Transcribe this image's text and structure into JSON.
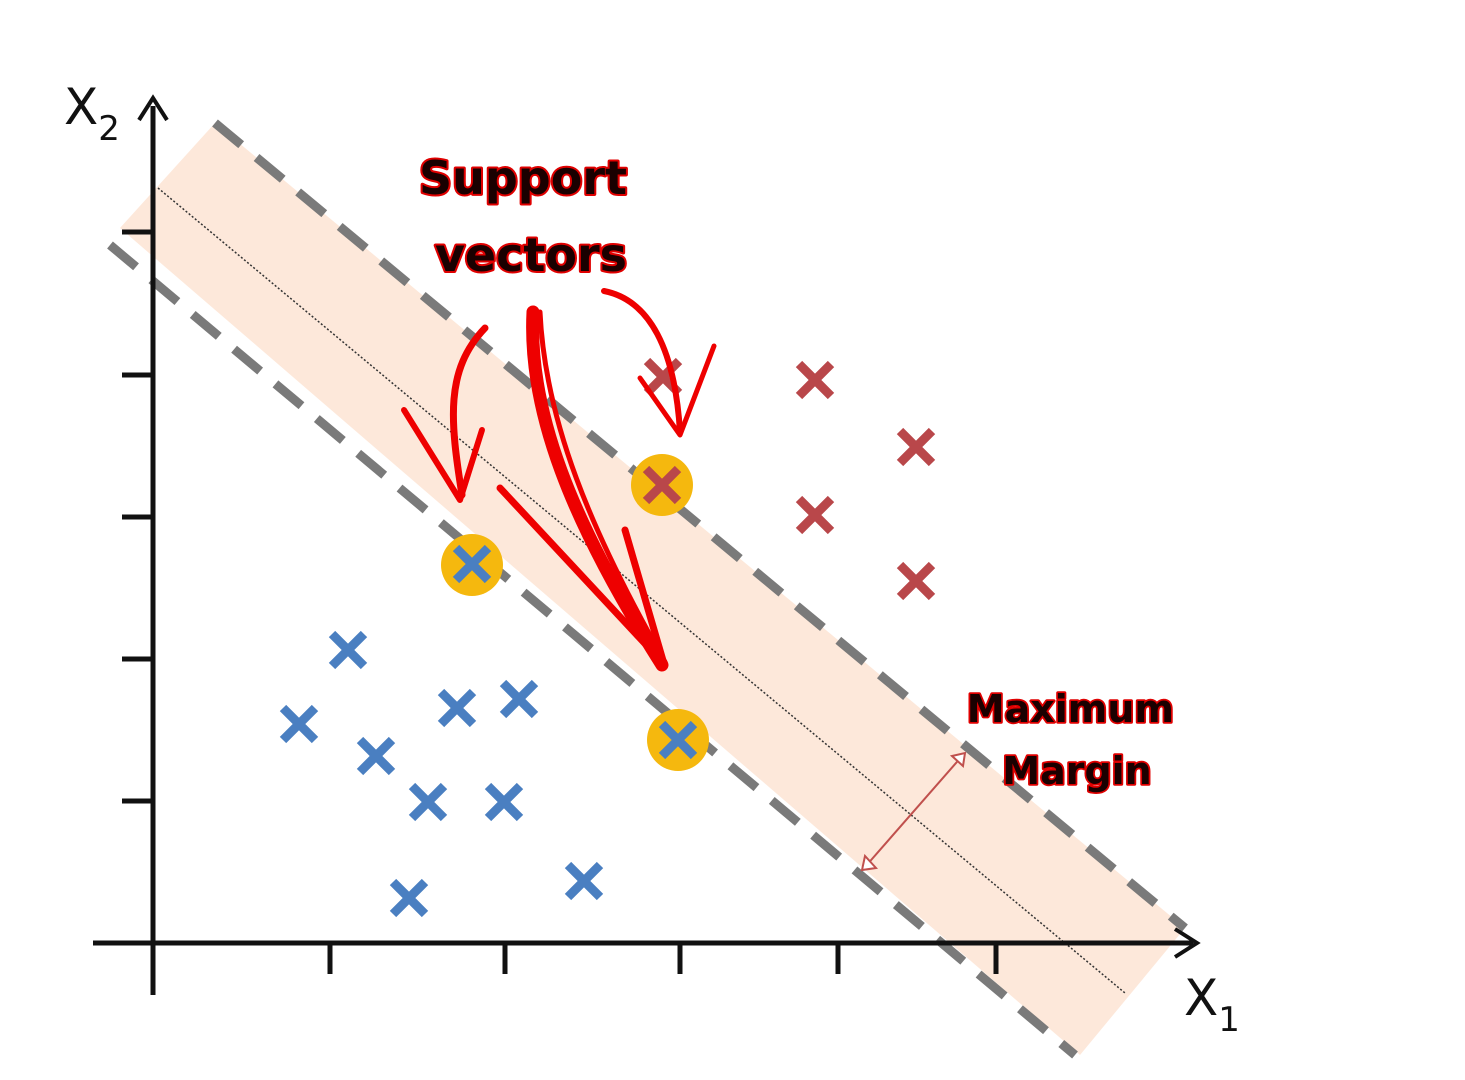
{
  "diagram": {
    "x_axis_label": "X",
    "x_axis_subscript": "1",
    "y_axis_label": "X",
    "y_axis_subscript": "2",
    "callouts": {
      "support_vectors": [
        "Support",
        "vectors"
      ],
      "maximum_margin": [
        "Maximum",
        "Margin"
      ]
    },
    "classes": [
      {
        "name": "blue class",
        "color": "#4a7fc1",
        "marker": "x-icon"
      },
      {
        "name": "red class",
        "color": "#b9474a",
        "marker": "x-icon"
      }
    ],
    "colors": {
      "margin_band": "#fde8da",
      "margin_edges": "#7a7a7a",
      "support_vector_highlight": "#f5b80e",
      "callout_arrows": "#ee0000",
      "margin_arrow": "#c0504d",
      "axes": "#111111"
    }
  }
}
